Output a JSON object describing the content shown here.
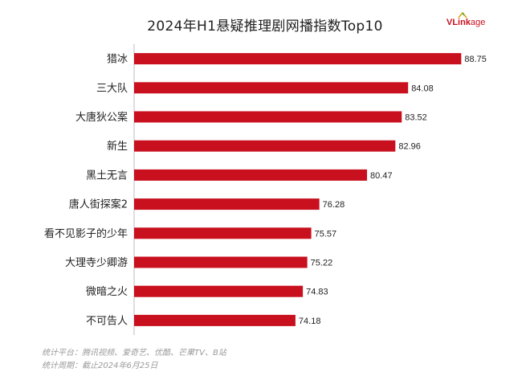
{
  "title": "2024年H1悬疑推理剧网播指数Top10",
  "logo": {
    "text_main": "VLink",
    "text_tail": "age"
  },
  "footer": {
    "platforms": "统计平台：腾讯视频、爱奇艺、优酷、芒果TV、B站",
    "period": "统计周期：截止2024年6月25日"
  },
  "colors": {
    "bar": "#c8101e",
    "axis": "#bdbdbd",
    "label": "#222222"
  },
  "chart_data": {
    "type": "bar",
    "orientation": "horizontal",
    "categories": [
      "猎冰",
      "三大队",
      "大唐狄公案",
      "新生",
      "黑土无言",
      "唐人街探案2",
      "看不见影子的少年",
      "大理寺少卿游",
      "微暗之火",
      "不可告人"
    ],
    "values": [
      88.75,
      84.08,
      83.52,
      82.96,
      80.47,
      76.28,
      75.57,
      75.22,
      74.83,
      74.18
    ],
    "title": "2024年H1悬疑推理剧网播指数Top10",
    "xlabel": "",
    "ylabel": "",
    "xlim": [
      60,
      89.5
    ],
    "grid": false,
    "data_labels": true
  }
}
